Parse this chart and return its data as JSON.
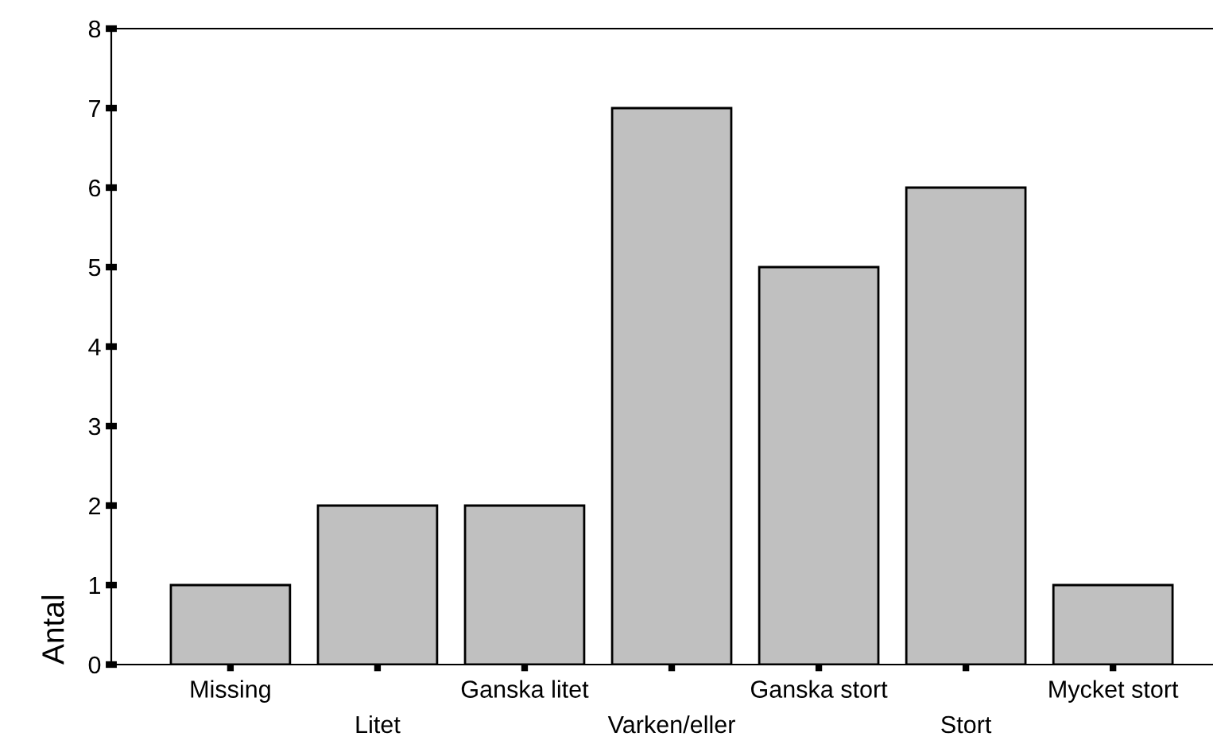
{
  "chart_data": {
    "type": "bar",
    "ylabel": "Antal",
    "categories": [
      "Missing",
      "Litet",
      "Ganska litet",
      "Varken/eller",
      "Ganska stort",
      "Stort",
      "Mycket stort"
    ],
    "values": [
      1,
      2,
      2,
      7,
      5,
      6,
      1
    ],
    "color": "#c0c0c0",
    "ylim": [
      0,
      8
    ],
    "yticks": [
      0,
      1,
      2,
      3,
      4,
      5,
      6,
      7,
      8
    ],
    "grid": false,
    "legend": false
  }
}
